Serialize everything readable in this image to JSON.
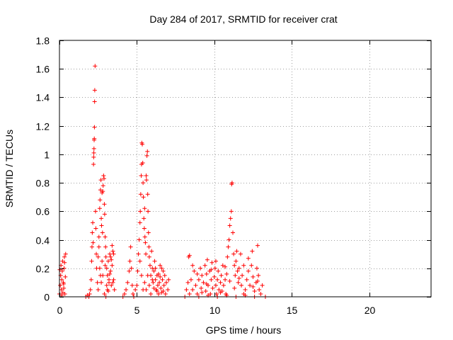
{
  "chart_data": {
    "type": "scatter",
    "title": "Day 284 of 2017, SRMTID for receiver crat",
    "xlabel": "GPS time / hours",
    "ylabel": "SRMTID / TECUs",
    "xlim": [
      0,
      24
    ],
    "ylim": [
      0,
      1.8
    ],
    "grid": true,
    "marker": "+",
    "x_ticks": [
      {
        "value": 0,
        "label": "0"
      },
      {
        "value": 5,
        "label": "5"
      },
      {
        "value": 10,
        "label": "10"
      },
      {
        "value": 15,
        "label": "15"
      },
      {
        "value": 20,
        "label": "20"
      }
    ],
    "y_ticks": [
      {
        "value": 0,
        "label": "0"
      },
      {
        "value": 0.2,
        "label": "0.2"
      },
      {
        "value": 0.4,
        "label": "0.4"
      },
      {
        "value": 0.6,
        "label": "0.6"
      },
      {
        "value": 0.8,
        "label": "0.8"
      },
      {
        "value": 1.0,
        "label": "1"
      },
      {
        "value": 1.2,
        "label": "1.2"
      },
      {
        "value": 1.4,
        "label": "1.4"
      },
      {
        "value": 1.6,
        "label": "1.6"
      },
      {
        "value": 1.8,
        "label": "1.8"
      }
    ],
    "series": [
      {
        "name": "SRMTID",
        "color": "#ff0000",
        "points": [
          [
            0.0,
            0.02
          ],
          [
            0.05,
            0.08
          ],
          [
            0.08,
            0.15
          ],
          [
            0.1,
            0.22
          ],
          [
            0.12,
            0.05
          ],
          [
            0.15,
            0.12
          ],
          [
            0.18,
            0.18
          ],
          [
            0.2,
            0.25
          ],
          [
            0.22,
            0.03
          ],
          [
            0.25,
            0.1
          ],
          [
            0.28,
            0.06
          ],
          [
            0.3,
            0.2
          ],
          [
            0.32,
            0.28
          ],
          [
            0.35,
            0.02
          ],
          [
            0.38,
            0.14
          ],
          [
            0.4,
            0.3
          ],
          [
            0.02,
            0.19
          ],
          [
            0.14,
            0.01
          ],
          [
            0.27,
            0.09
          ],
          [
            0.33,
            0.24
          ],
          [
            1.7,
            0.0
          ],
          [
            1.8,
            0.01
          ],
          [
            1.9,
            0.0
          ],
          [
            1.95,
            0.02
          ],
          [
            2.0,
            0.05
          ],
          [
            2.05,
            0.12
          ],
          [
            2.08,
            0.25
          ],
          [
            2.1,
            0.35
          ],
          [
            2.12,
            0.45
          ],
          [
            2.15,
            0.52
          ],
          [
            2.17,
            0.38
          ],
          [
            2.2,
            0.93
          ],
          [
            2.21,
            0.98
          ],
          [
            2.22,
            1.01
          ],
          [
            2.23,
            1.04
          ],
          [
            2.24,
            1.1
          ],
          [
            2.25,
            1.11
          ],
          [
            2.26,
            1.19
          ],
          [
            2.27,
            1.37
          ],
          [
            2.28,
            1.45
          ],
          [
            2.3,
            1.62
          ],
          [
            2.33,
            0.6
          ],
          [
            2.35,
            0.48
          ],
          [
            2.38,
            0.3
          ],
          [
            2.4,
            0.2
          ],
          [
            2.45,
            0.1
          ],
          [
            2.5,
            0.05
          ],
          [
            2.55,
            0.42
          ],
          [
            2.6,
            0.62
          ],
          [
            2.62,
            0.68
          ],
          [
            2.65,
            0.75
          ],
          [
            2.68,
            0.82
          ],
          [
            2.7,
            0.55
          ],
          [
            2.72,
            0.5
          ],
          [
            2.75,
            0.73
          ],
          [
            2.78,
            0.45
          ],
          [
            2.8,
            0.74
          ],
          [
            2.82,
            0.78
          ],
          [
            2.85,
            0.85
          ],
          [
            2.88,
            0.83
          ],
          [
            2.9,
            0.65
          ],
          [
            2.92,
            0.58
          ],
          [
            2.95,
            0.42
          ],
          [
            2.98,
            0.35
          ],
          [
            3.0,
            0.28
          ],
          [
            3.05,
            0.2
          ],
          [
            3.1,
            0.15
          ],
          [
            3.15,
            0.25
          ],
          [
            3.2,
            0.1
          ],
          [
            3.25,
            0.3
          ],
          [
            3.3,
            0.18
          ],
          [
            3.35,
            0.08
          ],
          [
            3.4,
            0.22
          ],
          [
            3.45,
            0.32
          ],
          [
            3.5,
            0.12
          ],
          [
            3.55,
            0.05
          ],
          [
            2.9,
            0.02
          ],
          [
            3.0,
            0.0
          ],
          [
            3.1,
            0.05
          ],
          [
            3.2,
            0.12
          ],
          [
            3.3,
            0.28
          ],
          [
            3.4,
            0.36
          ],
          [
            3.5,
            0.3
          ],
          [
            2.6,
            0.2
          ],
          [
            2.7,
            0.1
          ],
          [
            2.8,
            0.15
          ],
          [
            2.95,
            0.22
          ],
          [
            3.05,
            0.08
          ],
          [
            3.15,
            0.04
          ],
          [
            3.25,
            0.16
          ],
          [
            3.35,
            0.26
          ],
          [
            3.45,
            0.1
          ],
          [
            2.5,
            0.28
          ],
          [
            2.55,
            0.35
          ],
          [
            2.65,
            0.15
          ],
          [
            2.75,
            0.25
          ],
          [
            4.1,
            0.0
          ],
          [
            4.2,
            0.02
          ],
          [
            4.3,
            0.05
          ],
          [
            4.4,
            0.1
          ],
          [
            4.5,
            0.18
          ],
          [
            4.55,
            0.25
          ],
          [
            4.6,
            0.35
          ],
          [
            4.65,
            0.2
          ],
          [
            4.7,
            0.08
          ],
          [
            4.75,
            0.02
          ],
          [
            4.8,
            0.0
          ],
          [
            4.9,
            0.05
          ],
          [
            5.0,
            0.08
          ],
          [
            5.05,
            0.18
          ],
          [
            5.1,
            0.3
          ],
          [
            5.15,
            0.4
          ],
          [
            5.2,
            0.52
          ],
          [
            5.22,
            0.6
          ],
          [
            5.25,
            0.72
          ],
          [
            5.28,
            0.85
          ],
          [
            5.3,
            0.93
          ],
          [
            5.32,
            1.08
          ],
          [
            5.35,
            1.07
          ],
          [
            5.38,
            0.94
          ],
          [
            5.4,
            0.8
          ],
          [
            5.42,
            0.7
          ],
          [
            5.45,
            0.55
          ],
          [
            5.48,
            0.48
          ],
          [
            5.5,
            0.62
          ],
          [
            5.52,
            0.42
          ],
          [
            5.55,
            0.38
          ],
          [
            5.58,
            0.3
          ],
          [
            5.6,
            0.85
          ],
          [
            5.62,
            0.82
          ],
          [
            5.65,
            0.99
          ],
          [
            5.68,
            1.02
          ],
          [
            5.7,
            0.72
          ],
          [
            5.72,
            0.6
          ],
          [
            5.75,
            0.45
          ],
          [
            5.78,
            0.35
          ],
          [
            5.8,
            0.28
          ],
          [
            5.85,
            0.22
          ],
          [
            5.9,
            0.15
          ],
          [
            5.95,
            0.32
          ],
          [
            6.0,
            0.2
          ],
          [
            6.05,
            0.1
          ],
          [
            6.1,
            0.18
          ],
          [
            6.15,
            0.25
          ],
          [
            6.2,
            0.12
          ],
          [
            6.25,
            0.05
          ],
          [
            6.3,
            0.15
          ],
          [
            6.35,
            0.08
          ],
          [
            6.4,
            0.02
          ],
          [
            6.45,
            0.1
          ],
          [
            6.5,
            0.14
          ],
          [
            6.55,
            0.06
          ],
          [
            6.6,
            0.2
          ],
          [
            6.65,
            0.12
          ],
          [
            6.7,
            0.04
          ],
          [
            6.75,
            0.08
          ],
          [
            6.8,
            0.15
          ],
          [
            6.85,
            0.02
          ],
          [
            6.9,
            0.1
          ],
          [
            7.0,
            0.05
          ],
          [
            7.05,
            0.12
          ],
          [
            5.5,
            0.1
          ],
          [
            5.6,
            0.05
          ],
          [
            5.7,
            0.15
          ],
          [
            5.8,
            0.08
          ],
          [
            5.9,
            0.02
          ],
          [
            6.0,
            0.12
          ],
          [
            6.1,
            0.06
          ],
          [
            6.2,
            0.2
          ],
          [
            6.3,
            0.04
          ],
          [
            6.4,
            0.16
          ],
          [
            6.5,
            0.22
          ],
          [
            6.6,
            0.03
          ],
          [
            6.7,
            0.18
          ],
          [
            5.2,
            0.25
          ],
          [
            5.3,
            0.15
          ],
          [
            5.4,
            0.05
          ],
          [
            8.1,
            0.0
          ],
          [
            8.2,
            0.05
          ],
          [
            8.3,
            0.1
          ],
          [
            8.35,
            0.28
          ],
          [
            8.4,
            0.29
          ],
          [
            8.5,
            0.12
          ],
          [
            8.6,
            0.05
          ],
          [
            8.7,
            0.18
          ],
          [
            8.8,
            0.08
          ],
          [
            8.9,
            0.02
          ],
          [
            9.0,
            0.12
          ],
          [
            9.1,
            0.2
          ],
          [
            9.15,
            0.06
          ],
          [
            9.2,
            0.15
          ],
          [
            9.3,
            0.1
          ],
          [
            9.4,
            0.22
          ],
          [
            9.45,
            0.04
          ],
          [
            9.5,
            0.16
          ],
          [
            9.55,
            0.26
          ],
          [
            9.6,
            0.08
          ],
          [
            9.7,
            0.18
          ],
          [
            9.75,
            0.02
          ],
          [
            9.8,
            0.12
          ],
          [
            9.85,
            0.24
          ],
          [
            9.9,
            0.06
          ],
          [
            10.0,
            0.14
          ],
          [
            10.05,
            0.2
          ],
          [
            10.1,
            0.08
          ],
          [
            10.15,
            0.02
          ],
          [
            10.2,
            0.12
          ],
          [
            10.25,
            0.18
          ],
          [
            10.3,
            0.05
          ],
          [
            10.4,
            0.1
          ],
          [
            10.45,
            0.15
          ],
          [
            10.5,
            0.04
          ],
          [
            10.55,
            0.22
          ],
          [
            10.6,
            0.08
          ],
          [
            10.7,
            0.12
          ],
          [
            10.75,
            0.02
          ],
          [
            10.8,
            0.16
          ],
          [
            10.85,
            0.28
          ],
          [
            10.9,
            0.35
          ],
          [
            10.95,
            0.4
          ],
          [
            11.0,
            0.5
          ],
          [
            11.05,
            0.55
          ],
          [
            11.1,
            0.6
          ],
          [
            11.12,
            0.79
          ],
          [
            11.15,
            0.8
          ],
          [
            11.2,
            0.45
          ],
          [
            11.25,
            0.3
          ],
          [
            11.3,
            0.22
          ],
          [
            11.35,
            0.15
          ],
          [
            11.4,
            0.25
          ],
          [
            11.45,
            0.32
          ],
          [
            11.5,
            0.18
          ],
          [
            11.55,
            0.1
          ],
          [
            11.6,
            0.2
          ],
          [
            11.7,
            0.3
          ],
          [
            11.75,
            0.08
          ],
          [
            11.8,
            0.15
          ],
          [
            11.9,
            0.22
          ],
          [
            12.0,
            0.05
          ],
          [
            12.1,
            0.12
          ],
          [
            12.2,
            0.18
          ],
          [
            12.3,
            0.08
          ],
          [
            12.4,
            0.22
          ],
          [
            12.45,
            0.32
          ],
          [
            12.5,
            0.14
          ],
          [
            12.6,
            0.04
          ],
          [
            12.7,
            0.1
          ],
          [
            12.75,
            0.2
          ],
          [
            12.8,
            0.36
          ],
          [
            12.85,
            0.15
          ],
          [
            12.9,
            0.05
          ],
          [
            13.0,
            0.02
          ],
          [
            13.1,
            0.08
          ],
          [
            13.3,
            0.0
          ],
          [
            8.6,
            0.22
          ],
          [
            8.9,
            0.16
          ],
          [
            9.2,
            0.03
          ],
          [
            9.5,
            0.09
          ],
          [
            9.8,
            0.19
          ],
          [
            10.1,
            0.25
          ],
          [
            10.4,
            0.03
          ],
          [
            10.7,
            0.21
          ],
          [
            11.0,
            0.11
          ],
          [
            11.3,
            0.06
          ],
          [
            11.6,
            0.13
          ],
          [
            11.9,
            0.02
          ],
          [
            12.2,
            0.27
          ],
          [
            12.5,
            0.07
          ],
          [
            12.8,
            0.11
          ],
          [
            9.0,
            0.0
          ],
          [
            9.6,
            0.01
          ],
          [
            10.2,
            0.0
          ],
          [
            10.8,
            0.01
          ],
          [
            11.4,
            0.0
          ],
          [
            12.0,
            0.01
          ],
          [
            12.6,
            0.0
          ],
          [
            8.4,
            0.02
          ]
        ]
      }
    ]
  }
}
